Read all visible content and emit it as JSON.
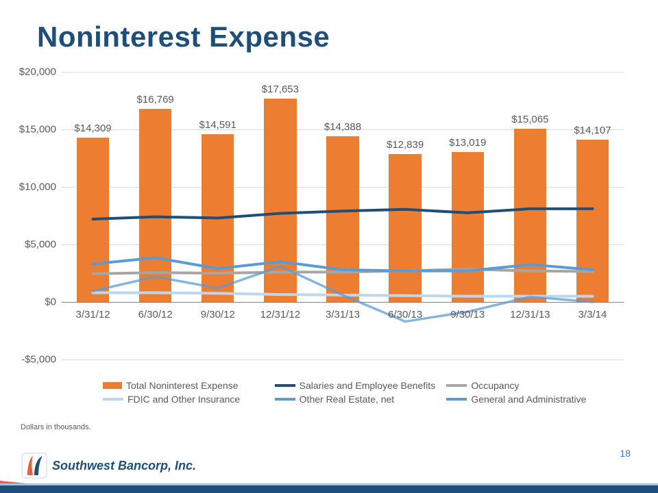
{
  "title": "Noninterest Expense",
  "footnote": "Dollars in thousands.",
  "page_number": "18",
  "brand_name": "Southwest Bancorp, Inc.",
  "brand_colors": {
    "orange": "#e8613c",
    "navy": "#1f4e79",
    "light_blue": "#9dc3e6"
  },
  "chart": {
    "type": "bar+line",
    "background_color": "#ffffff",
    "grid_color": "#d9d9d9",
    "axis_font_size": 15,
    "axis_font_color": "#595959",
    "y_min": -5000,
    "y_max": 20000,
    "y_tick_step": 5000,
    "y_tick_labels": [
      "-$5,000",
      "$0",
      "$5,000",
      "$10,000",
      "$15,000",
      "$20,000"
    ],
    "y_tick_values": [
      -5000,
      0,
      5000,
      10000,
      15000,
      20000
    ],
    "categories": [
      "3/31/12",
      "6/30/12",
      "9/30/12",
      "12/31/12",
      "3/31/13",
      "6/30/13",
      "9/30/13",
      "12/31/13",
      "3/3/14"
    ],
    "categories_baseline_value": 0,
    "bars": {
      "name": "Total Noninterest Expense",
      "color": "#ed7d31",
      "values": [
        14309,
        16769,
        14591,
        17653,
        14388,
        12839,
        13019,
        15065,
        14107
      ],
      "data_label_prefix": "$",
      "data_label_font_size": 15,
      "bar_width_ratio": 0.52
    },
    "lines": [
      {
        "name": "Salaries and Employee Benefits",
        "color": "#1f4e79",
        "width": 4,
        "values": [
          7200,
          7400,
          7300,
          7700,
          7900,
          8050,
          7750,
          8100,
          8100
        ]
      },
      {
        "name": "Occupancy",
        "color": "#a6a6a6",
        "width": 4,
        "values": [
          2450,
          2550,
          2500,
          2600,
          2600,
          2700,
          2850,
          2700,
          2650
        ]
      },
      {
        "name": "FDIC and Other Insurance",
        "color": "#bdd7ee",
        "width": 4,
        "values": [
          800,
          800,
          750,
          650,
          600,
          550,
          500,
          500,
          500
        ]
      },
      {
        "name": "Other Real Estate, net",
        "color": "#5b9bd5",
        "width": 3.5,
        "values": [
          950,
          2200,
          1200,
          3100,
          600,
          -1700,
          -850,
          450,
          0
        ],
        "opacity": 0.75
      },
      {
        "name": "General and Administrative",
        "color": "#5b9bd5",
        "width": 4,
        "values": [
          3300,
          3850,
          2900,
          3500,
          2800,
          2700,
          2700,
          3250,
          2800
        ]
      }
    ],
    "legend": {
      "font_size": 14,
      "font_color": "#595959",
      "swatch_bar": {
        "color": "#ed7d31"
      },
      "items": [
        {
          "kind": "bar",
          "label": "Total Noninterest Expense",
          "color": "#ed7d31"
        },
        {
          "kind": "line",
          "label": "Salaries and Employee Benefits",
          "color": "#1f4e79"
        },
        {
          "kind": "line",
          "label": "Occupancy",
          "color": "#a6a6a6"
        },
        {
          "kind": "line",
          "label": "FDIC and Other Insurance",
          "color": "#bdd7ee"
        },
        {
          "kind": "line",
          "label": "Other Real Estate, net",
          "color": "#5b9bd5"
        },
        {
          "kind": "line",
          "label": "General and Administrative",
          "color": "#5b9bd5"
        }
      ]
    }
  }
}
